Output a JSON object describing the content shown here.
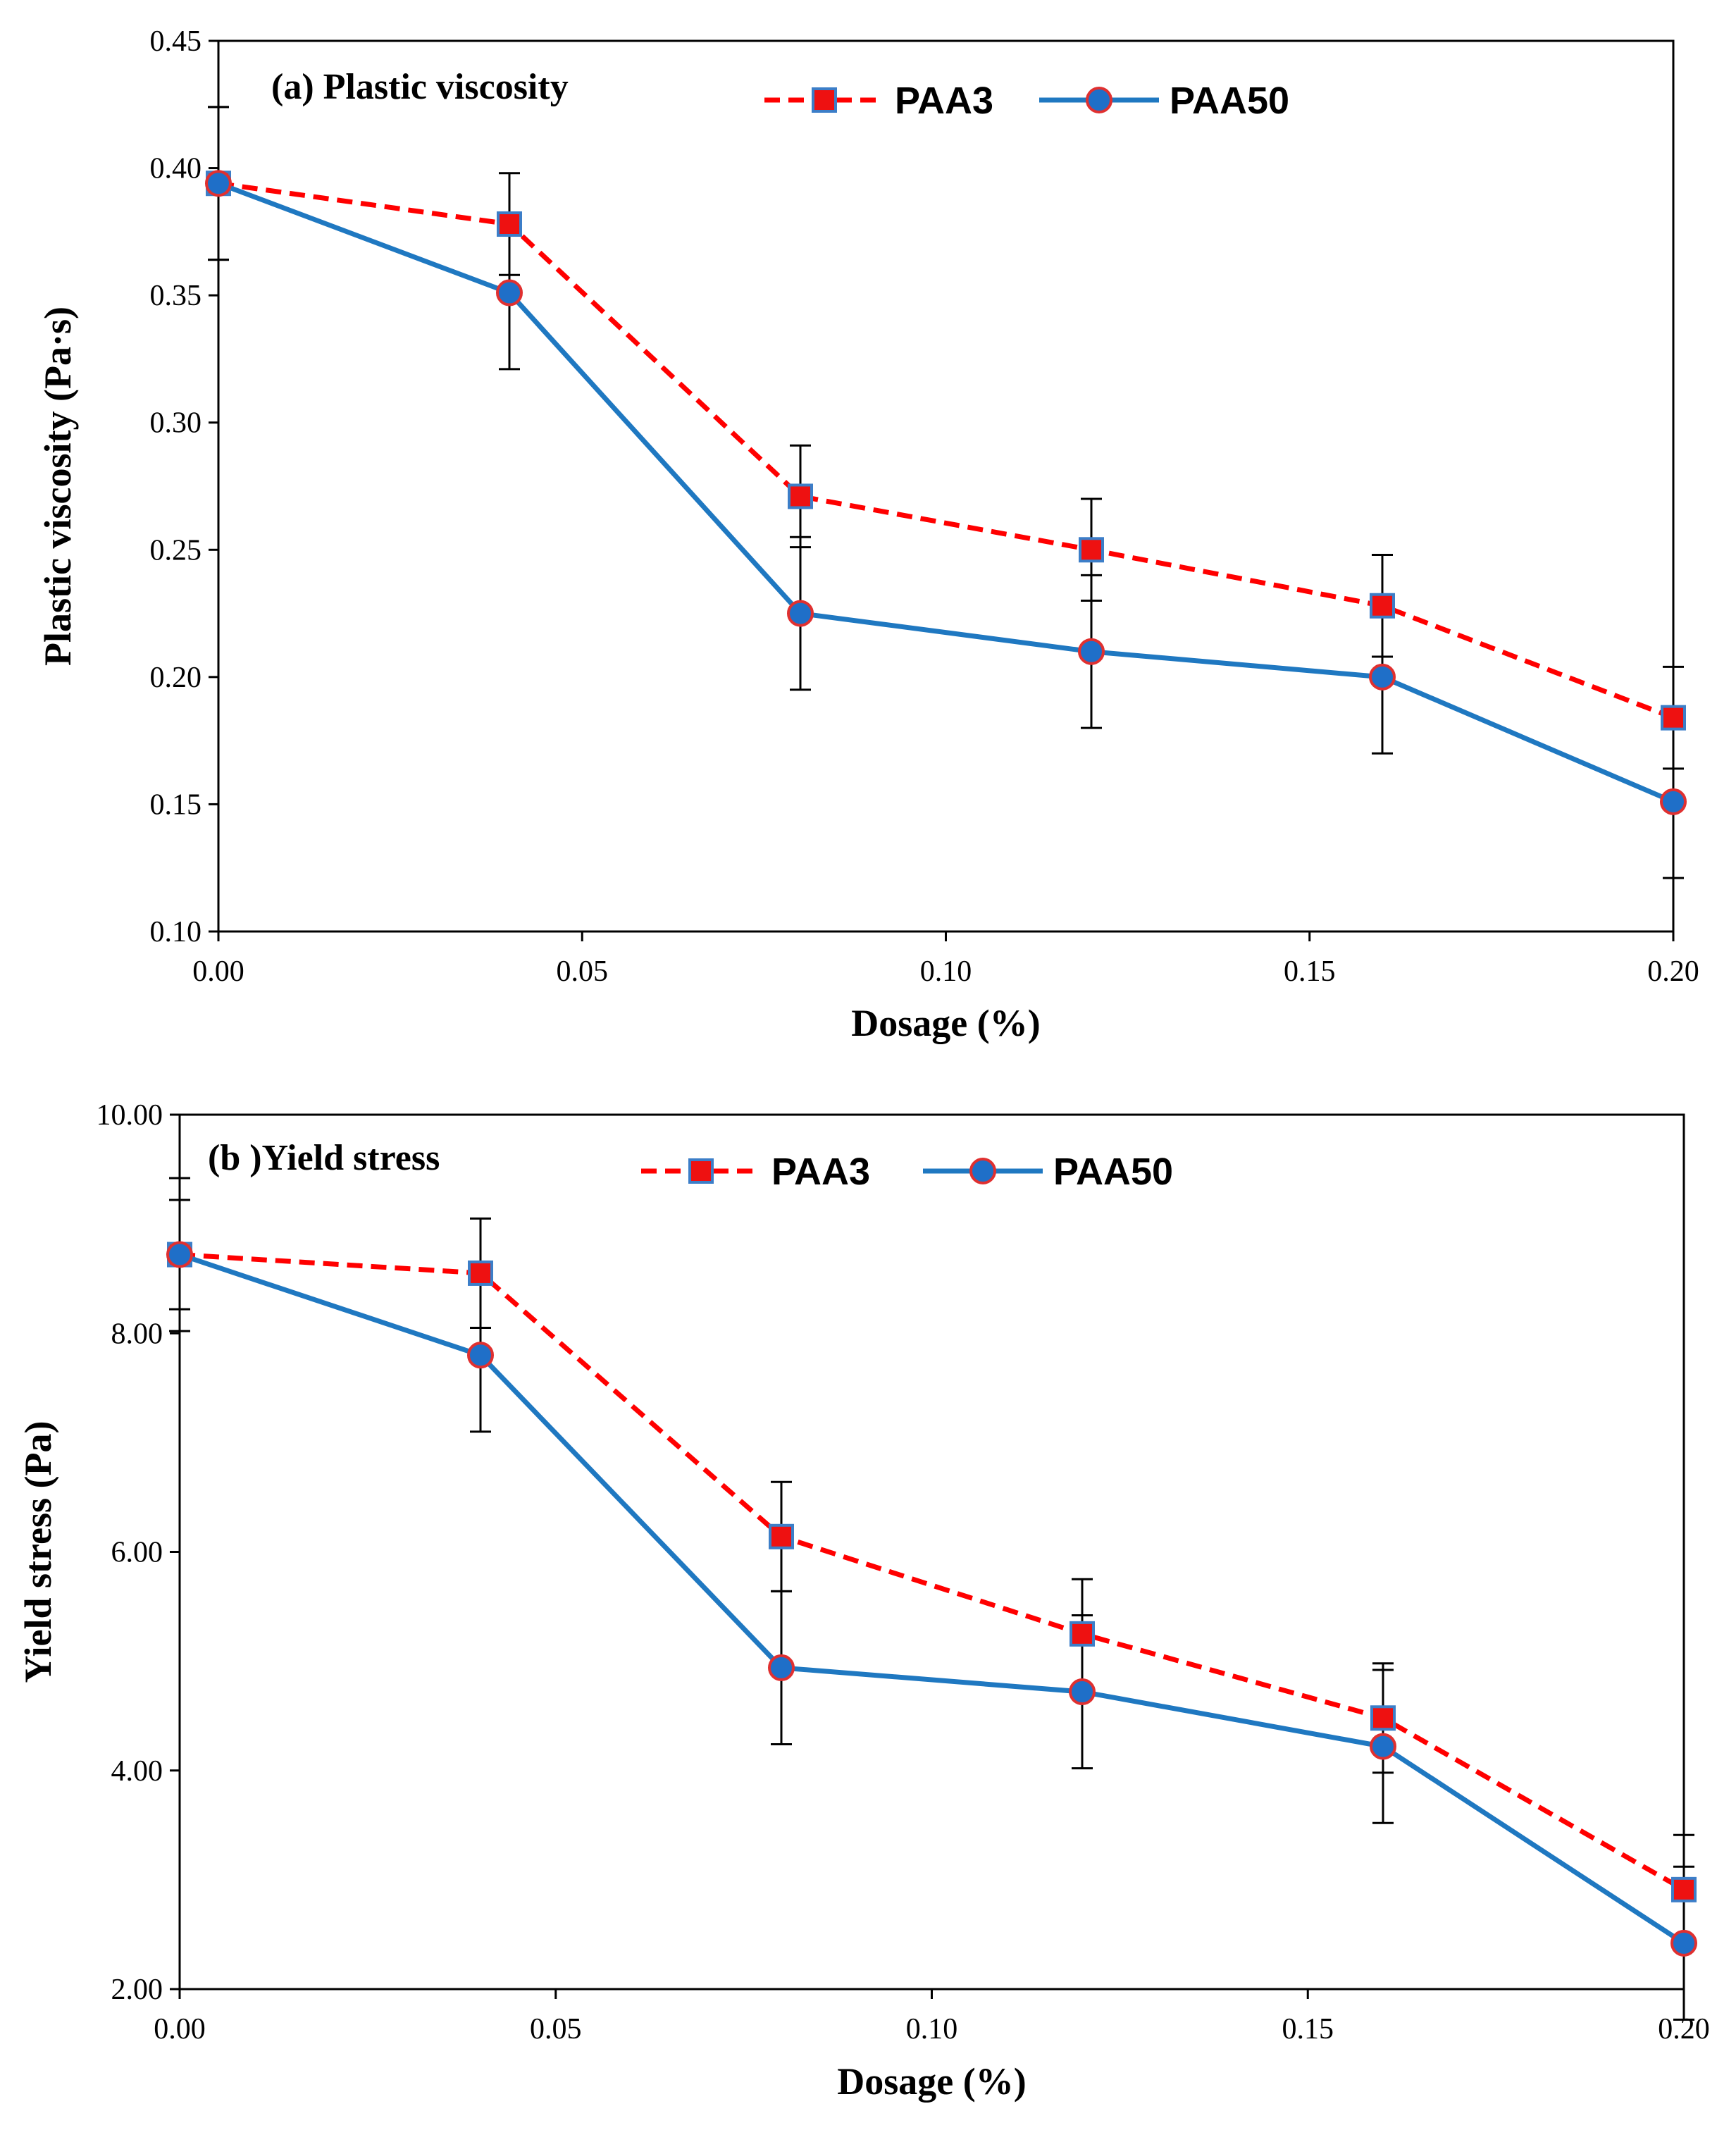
{
  "chart_data": [
    {
      "type": "line",
      "title": "(a) Plastic viscosity",
      "xlabel": "Dosage (%)",
      "ylabel": "Plastic viscosity (Pa·s)",
      "xlim": [
        0,
        0.2
      ],
      "ylim": [
        0.1,
        0.45
      ],
      "xticks": [
        "0.00",
        "0.05",
        "0.10",
        "0.15",
        "0.20"
      ],
      "yticks": [
        "0.10",
        "0.15",
        "0.20",
        "0.25",
        "0.30",
        "0.35",
        "0.40",
        "0.45"
      ],
      "legend_position": "top",
      "x": [
        0,
        0.04,
        0.08,
        0.12,
        0.16,
        0.2
      ],
      "series": [
        {
          "name": "PAA3",
          "color": "#ff0000",
          "marker_fill": "#ee1111",
          "marker_edge": "#3c7ec8",
          "line_style": "dashed",
          "marker": "square",
          "values": [
            0.394,
            0.378,
            0.271,
            0.25,
            0.228,
            0.184
          ],
          "error": [
            0.03,
            0.02,
            0.02,
            0.02,
            0.02,
            0.02
          ]
        },
        {
          "name": "PAA50",
          "color": "#1f78c1",
          "marker_fill": "#1f6fc8",
          "marker_edge": "#e03030",
          "line_style": "solid",
          "marker": "circle",
          "values": [
            0.394,
            0.351,
            0.225,
            0.21,
            0.2,
            0.151
          ],
          "error": [
            0.03,
            0.03,
            0.03,
            0.03,
            0.03,
            0.03
          ]
        }
      ]
    },
    {
      "type": "line",
      "title": "(b )Yield stress",
      "xlabel": "Dosage (%)",
      "ylabel": "Yield stress (Pa)",
      "xlim": [
        0,
        0.2
      ],
      "ylim": [
        2,
        10
      ],
      "xticks": [
        "0.00",
        "0.05",
        "0.10",
        "0.15",
        "0.20"
      ],
      "yticks": [
        "2.00",
        "4.00",
        "6.00",
        "8.00",
        "10.00"
      ],
      "legend_position": "top",
      "x": [
        0,
        0.04,
        0.08,
        0.12,
        0.16,
        0.2
      ],
      "series": [
        {
          "name": "PAA3",
          "color": "#ff0000",
          "marker_fill": "#ee1111",
          "marker_edge": "#3c7ec8",
          "line_style": "dashed",
          "marker": "square",
          "values": [
            8.72,
            8.55,
            6.14,
            5.25,
            4.48,
            2.91
          ],
          "error": [
            0.5,
            0.5,
            0.5,
            0.5,
            0.5,
            0.5
          ]
        },
        {
          "name": "PAA50",
          "color": "#1f78c1",
          "marker_fill": "#1f6fc8",
          "marker_edge": "#e03030",
          "line_style": "solid",
          "marker": "circle",
          "values": [
            8.72,
            7.8,
            4.94,
            4.72,
            4.22,
            2.42
          ],
          "error": [
            0.7,
            0.7,
            0.7,
            0.7,
            0.7,
            0.7
          ]
        }
      ]
    }
  ]
}
